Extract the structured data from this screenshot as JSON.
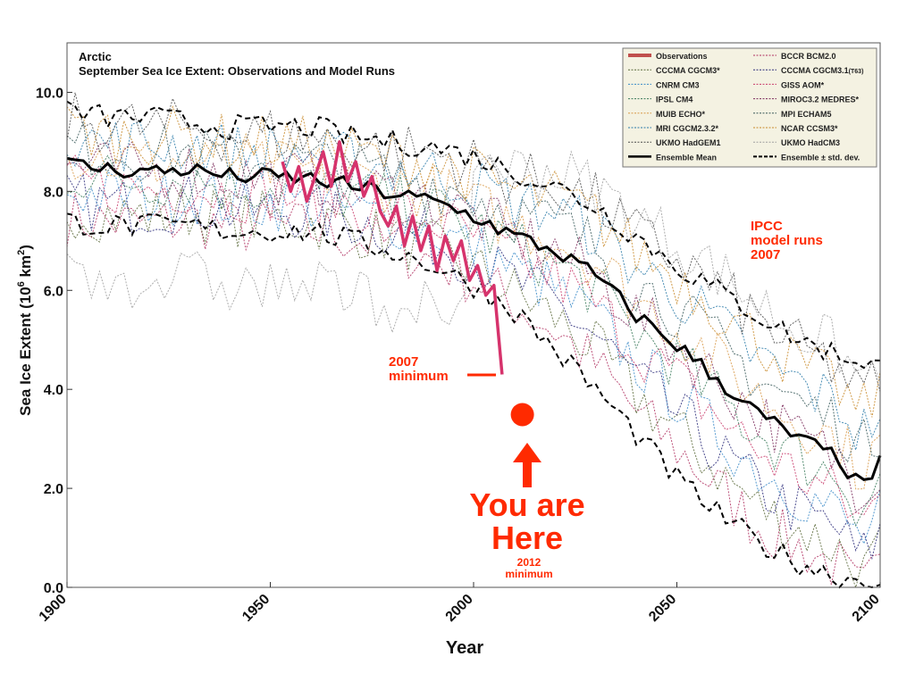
{
  "chart_data": {
    "type": "line",
    "title": "Arctic",
    "subtitle": "September Sea Ice Extent: Observations and Model Runs",
    "xlabel": "Year",
    "ylabel": "Sea Ice Extent (10",
    "ylabel_sup": "6",
    "ylabel_tail": " km",
    "ylabel_sup2": "2",
    "ylabel_end": ")",
    "xlim": [
      1900,
      2100
    ],
    "ylim": [
      0,
      11
    ],
    "x_ticks": [
      1900,
      1950,
      2000,
      2050,
      2100
    ],
    "x_tick_labels": [
      "1900",
      "1950",
      "2000",
      "2050",
      "2100"
    ],
    "y_ticks": [
      0,
      2,
      4,
      6,
      8,
      10
    ],
    "y_tick_labels": [
      "0.0",
      "2.0",
      "4.0",
      "6.0",
      "8.0",
      "10.0"
    ],
    "grid": false,
    "legend_position": "top-right",
    "legend": [
      {
        "label": "Observations",
        "style": "obs",
        "color": "#c0504d"
      },
      {
        "label": "BCCR BCM2.0",
        "style": "dot",
        "color": "#b03060"
      },
      {
        "label": "CCCMA CGCM3*",
        "style": "dot",
        "color": "#5a6a3a"
      },
      {
        "label": "CCCMA CGCM3.1",
        "suffix": "(T63)",
        "style": "dot",
        "color": "#2c2c7a"
      },
      {
        "label": "CNRM CM3",
        "style": "dot",
        "color": "#3a8ac8"
      },
      {
        "label": "GISS AOM*",
        "style": "dot",
        "color": "#c83a6a"
      },
      {
        "label": "IPSL CM4",
        "style": "dot",
        "color": "#3a7a5a"
      },
      {
        "label": "MIROC3.2 MEDRES*",
        "style": "dot",
        "color": "#7a2a5a"
      },
      {
        "label": "MUIB ECHO*",
        "style": "dot",
        "color": "#d89a4a"
      },
      {
        "label": "MPI ECHAM5",
        "style": "dot",
        "color": "#3a5a5a"
      },
      {
        "label": "MRI CGCM2.3.2*",
        "style": "dot",
        "color": "#2a7aa8"
      },
      {
        "label": "NCAR CCSM3*",
        "style": "dot",
        "color": "#c88a2a"
      },
      {
        "label": "UKMO HadGEM1",
        "style": "dot",
        "color": "#4a4a4a"
      },
      {
        "label": "UKMO HadCM3",
        "style": "dot",
        "color": "#a0a0a0"
      },
      {
        "label": "Ensemble Mean",
        "style": "solid",
        "color": "#000000"
      },
      {
        "label": "Ensemble ± std. dev.",
        "style": "dash",
        "color": "#000000"
      }
    ],
    "series": [
      {
        "name": "Observations",
        "color": "#d6336c",
        "x": [
          1953,
          1955,
          1957,
          1959,
          1961,
          1963,
          1965,
          1967,
          1969,
          1971,
          1973,
          1975,
          1977,
          1979,
          1981,
          1983,
          1985,
          1987,
          1989,
          1991,
          1993,
          1995,
          1997,
          1999,
          2001,
          2003,
          2005,
          2007
        ],
        "y": [
          8.6,
          8.0,
          8.5,
          7.8,
          8.3,
          8.8,
          8.1,
          9.0,
          8.2,
          8.6,
          7.9,
          8.3,
          7.6,
          7.3,
          7.7,
          6.9,
          7.5,
          6.8,
          7.3,
          6.4,
          7.1,
          6.6,
          7.0,
          6.2,
          6.5,
          5.9,
          6.1,
          4.3
        ]
      },
      {
        "name": "Ensemble Mean",
        "color": "#000000",
        "x": [
          1900,
          1910,
          1920,
          1930,
          1940,
          1950,
          1960,
          1970,
          1980,
          1990,
          2000,
          2010,
          2020,
          2030,
          2040,
          2050,
          2060,
          2070,
          2080,
          2090,
          2095,
          2100
        ],
        "y": [
          8.55,
          8.45,
          8.4,
          8.45,
          8.3,
          8.3,
          8.25,
          8.1,
          7.95,
          7.8,
          7.5,
          7.1,
          6.8,
          6.3,
          5.5,
          4.9,
          4.2,
          3.5,
          3.0,
          2.6,
          2.0,
          2.5
        ]
      },
      {
        "name": "Ensemble ± std. dev.",
        "x": [
          1900,
          1910,
          1920,
          1930,
          1940,
          1950,
          1960,
          1970,
          1980,
          1990,
          2000,
          2010,
          2020,
          2030,
          2040,
          2050,
          2060,
          2070,
          2080,
          2090,
          2100
        ],
        "y": [
          9.6,
          9.5,
          9.5,
          9.4,
          9.3,
          9.3,
          9.3,
          9.1,
          9.0,
          8.9,
          8.7,
          8.4,
          8.1,
          7.7,
          7.1,
          6.5,
          6.0,
          5.5,
          5.0,
          4.7,
          4.5
        ]
      },
      {
        "name": "Ensemble ± std. dev. (lower)",
        "x": [
          1900,
          1910,
          1920,
          1930,
          1940,
          1950,
          1960,
          1970,
          1980,
          1990,
          2000,
          2010,
          2020,
          2030,
          2040,
          2050,
          2060,
          2070,
          2080,
          2090,
          2100
        ],
        "y": [
          7.4,
          7.3,
          7.3,
          7.3,
          7.2,
          7.2,
          7.2,
          7.0,
          6.8,
          6.5,
          6.1,
          5.6,
          4.8,
          4.0,
          3.1,
          2.2,
          1.5,
          0.9,
          0.5,
          0.2,
          0.1
        ]
      }
    ],
    "annotations": {
      "ipcc_label": [
        "IPCC",
        "model runs",
        "2007"
      ],
      "min2007_label": [
        "2007",
        "minimum"
      ],
      "min2007_year": 2007,
      "min2007_value": 4.3,
      "here_year": 2012,
      "here_value": 3.4,
      "you_are_here": [
        "You are",
        "Here"
      ],
      "min2012_label": [
        "2012",
        "minimum"
      ]
    },
    "colors": {
      "accent_red": "#ff2a00",
      "obs_pink": "#d6336c",
      "legend_bg": "#f4f2e2"
    }
  }
}
